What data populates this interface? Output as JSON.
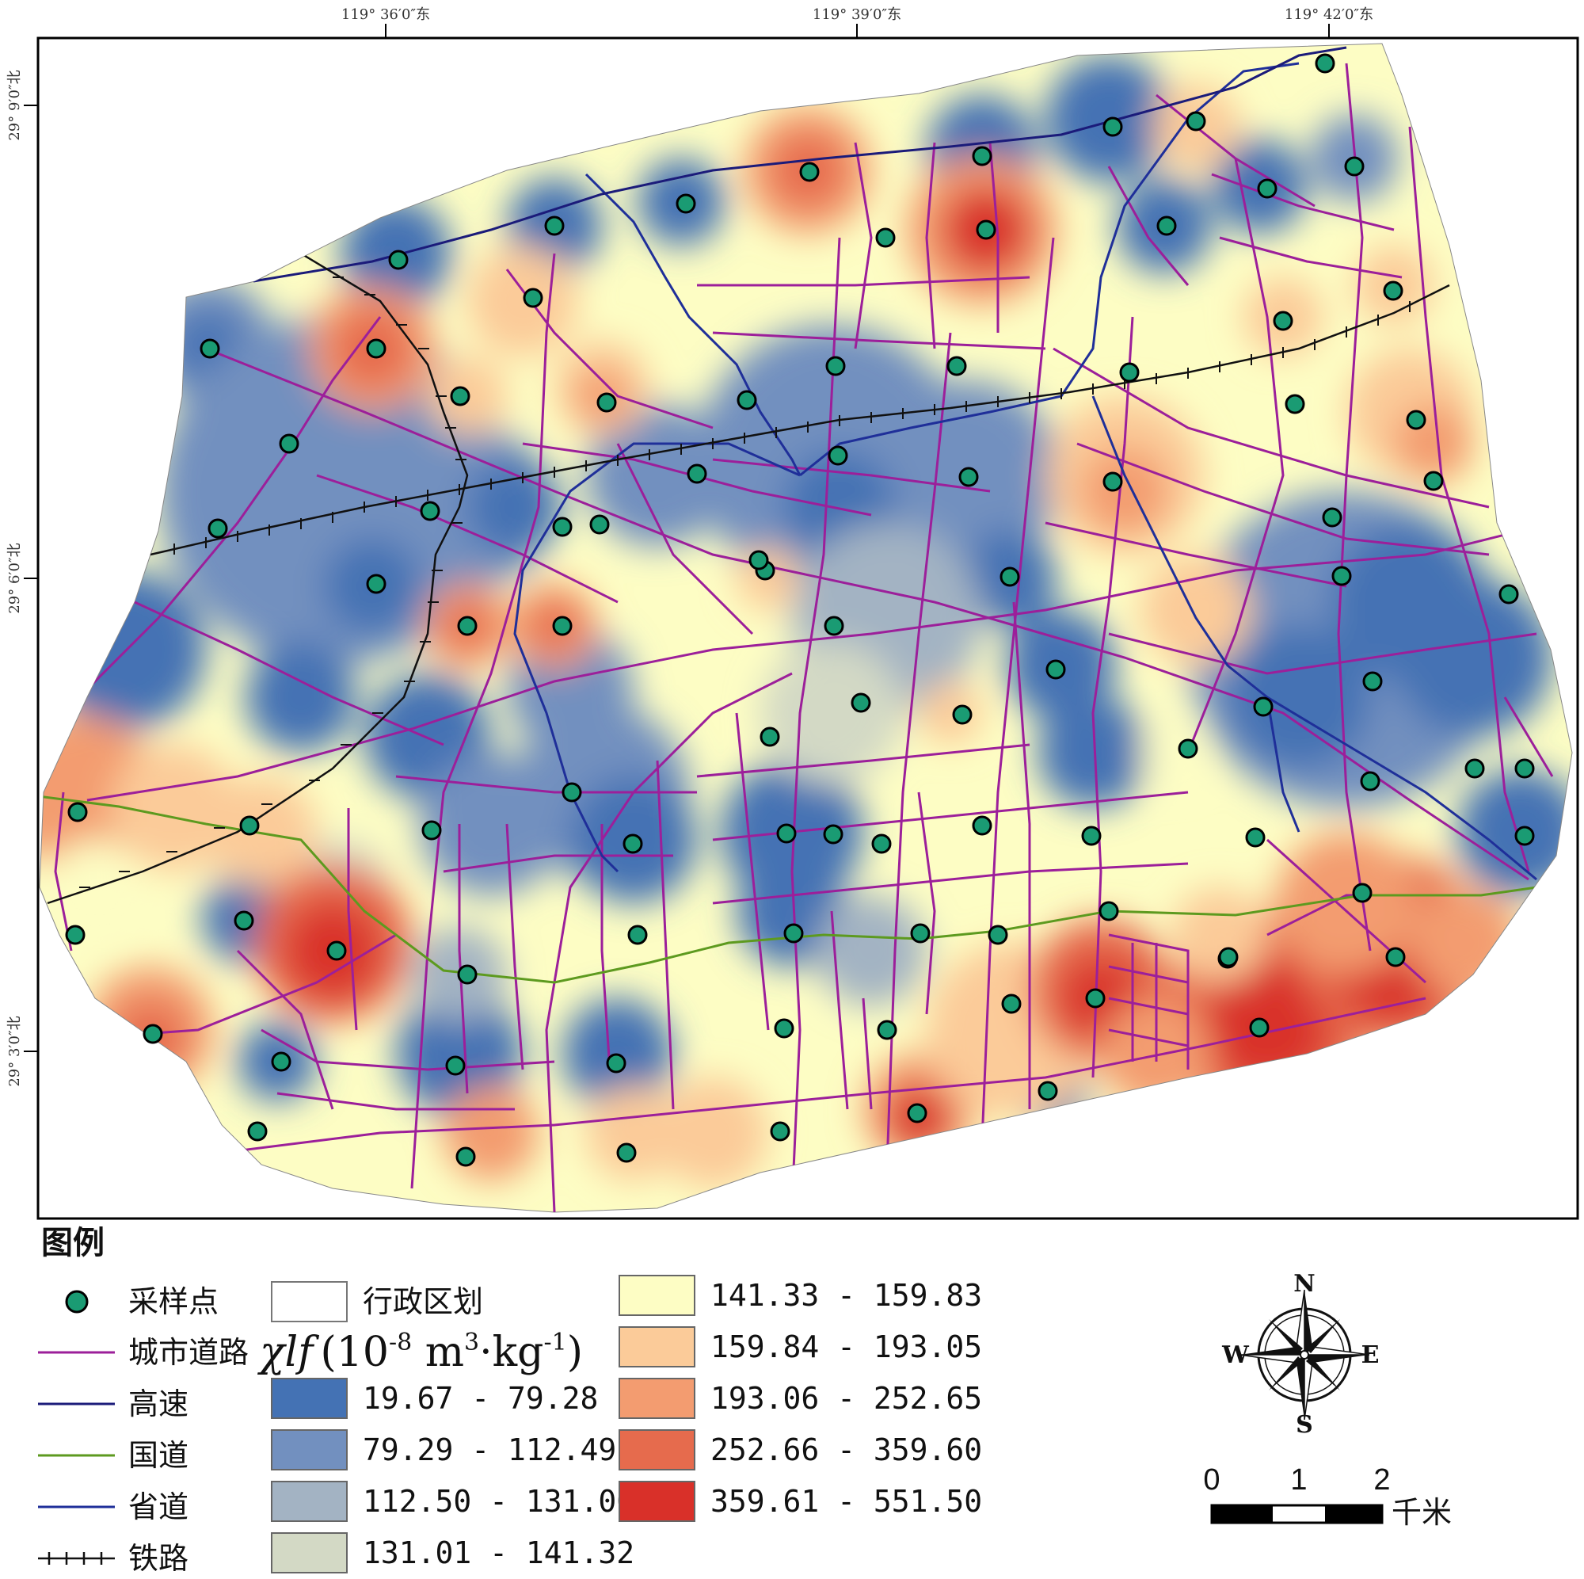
{
  "map": {
    "top_ticks": [
      "119° 36′0″东",
      "119° 39′0″东",
      "119° 42′0″东"
    ],
    "left_ticks": [
      "29° 9′0″北",
      "29° 6′0″北",
      "29° 3′0″北"
    ]
  },
  "legend": {
    "title": "图例",
    "sample_point": "采样点",
    "admin_boundary": "行政区划",
    "city_road": "城市道路",
    "highway": "高速",
    "national_road": "国道",
    "provincial_road": "省道",
    "railway": "铁路",
    "unit_symbol": "χlf",
    "unit": "(10-8 m3·kg-1)",
    "classes": [
      {
        "range": "19.67 - 79.28",
        "color": "#4472b4"
      },
      {
        "range": "79.29 - 112.49",
        "color": "#7290bf"
      },
      {
        "range": "112.50 - 131.00",
        "color": "#a3b3c3"
      },
      {
        "range": "131.01 - 141.32",
        "color": "#d3d9c5"
      },
      {
        "range": "141.33 - 159.83",
        "color": "#fdfdc4"
      },
      {
        "range": "159.84 - 193.05",
        "color": "#fbcb99"
      },
      {
        "range": "193.06 - 252.65",
        "color": "#f39c70"
      },
      {
        "range": "252.66 - 359.60",
        "color": "#e66b4d"
      },
      {
        "range": "359.61 - 551.50",
        "color": "#d93029"
      }
    ]
  },
  "compass": {
    "n": "N",
    "s": "S",
    "e": "E",
    "w": "W"
  },
  "scale": {
    "labels": [
      "0",
      "1",
      "2"
    ],
    "unit": "千米"
  },
  "colors": {
    "sample_point": "#1a9b73",
    "city_road": "#9c1f9a",
    "highway": "#1b1b7a",
    "national_road": "#5d9a1f",
    "provincial_road": "#1f2f99",
    "railway": "#111111"
  }
}
